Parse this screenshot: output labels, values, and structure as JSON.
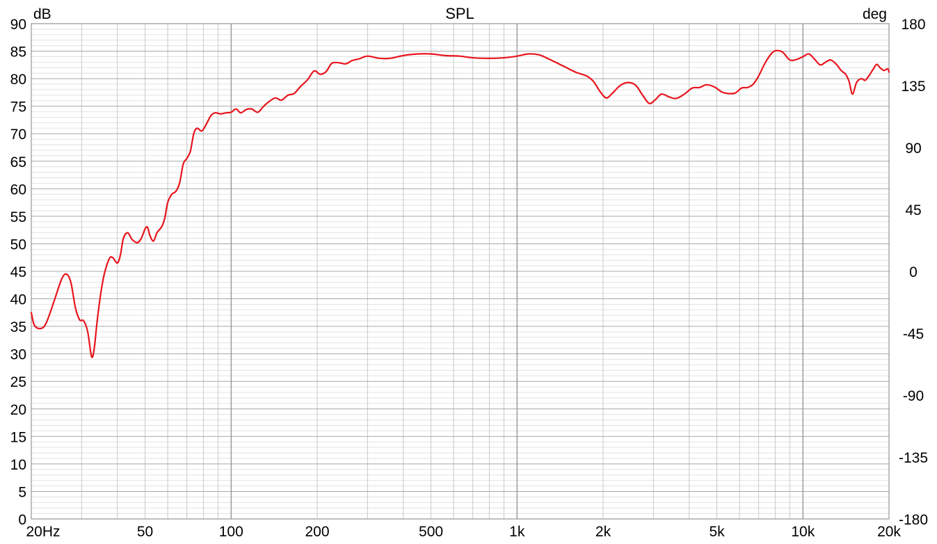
{
  "chart_data": {
    "type": "line",
    "title": "SPL",
    "ylabel_left": "dB",
    "ylabel_right": "deg",
    "x_scale": "log",
    "xlim": [
      20,
      20000
    ],
    "ylim": [
      0,
      90
    ],
    "ylim_right": [
      -180,
      180
    ],
    "grid": true,
    "x_ticks": [
      {
        "value": 20,
        "label": "20Hz"
      },
      {
        "value": 50,
        "label": "50"
      },
      {
        "value": 100,
        "label": "100"
      },
      {
        "value": 200,
        "label": "200"
      },
      {
        "value": 500,
        "label": "500"
      },
      {
        "value": 1000,
        "label": "1k"
      },
      {
        "value": 2000,
        "label": "2k"
      },
      {
        "value": 5000,
        "label": "5k"
      },
      {
        "value": 10000,
        "label": "10k"
      },
      {
        "value": 20000,
        "label": "20k"
      }
    ],
    "y_ticks": [
      "90",
      "85",
      "80",
      "75",
      "70",
      "65",
      "60",
      "55",
      "50",
      "45",
      "40",
      "35",
      "30",
      "25",
      "20",
      "15",
      "10",
      "5",
      "0"
    ],
    "y_ticks_right": [
      "180",
      "135",
      "90",
      "45",
      "0",
      "-45",
      "-90",
      "-135",
      "-180"
    ],
    "line_color": "#e8141c",
    "series": [
      {
        "values": [
          [
            20,
            37.5
          ],
          [
            20.5,
            35.2
          ],
          [
            21.5,
            34.6
          ],
          [
            22.5,
            35.5
          ],
          [
            24,
            39.5
          ],
          [
            25.5,
            43.5
          ],
          [
            26.5,
            44.5
          ],
          [
            27.5,
            43
          ],
          [
            28.5,
            38.5
          ],
          [
            29.5,
            36.2
          ],
          [
            30.5,
            36
          ],
          [
            31.5,
            34
          ],
          [
            32.5,
            29.5
          ],
          [
            33.2,
            31
          ],
          [
            34,
            36
          ],
          [
            35,
            41
          ],
          [
            36,
            44.5
          ],
          [
            37.5,
            47.3
          ],
          [
            38.5,
            47.5
          ],
          [
            40,
            46.5
          ],
          [
            41,
            48
          ],
          [
            42,
            51
          ],
          [
            43.5,
            52
          ],
          [
            45,
            50.8
          ],
          [
            47,
            50.2
          ],
          [
            48.5,
            51
          ],
          [
            50,
            52.7
          ],
          [
            51,
            53
          ],
          [
            52,
            51.5
          ],
          [
            53.5,
            50.5
          ],
          [
            55,
            52
          ],
          [
            57,
            53
          ],
          [
            58.5,
            54.5
          ],
          [
            60,
            57.5
          ],
          [
            62,
            59
          ],
          [
            64,
            59.5
          ],
          [
            66,
            61
          ],
          [
            68,
            64.5
          ],
          [
            70,
            65.5
          ],
          [
            72,
            66.8
          ],
          [
            74,
            70
          ],
          [
            76,
            71
          ],
          [
            79,
            70.5
          ],
          [
            82,
            71.8
          ],
          [
            85,
            73.3
          ],
          [
            88,
            73.8
          ],
          [
            92,
            73.6
          ],
          [
            96,
            73.8
          ],
          [
            100,
            73.9
          ],
          [
            104,
            74.5
          ],
          [
            108,
            73.8
          ],
          [
            113,
            74.4
          ],
          [
            118,
            74.5
          ],
          [
            124,
            73.9
          ],
          [
            130,
            75
          ],
          [
            137,
            76
          ],
          [
            143,
            76.5
          ],
          [
            150,
            76.1
          ],
          [
            158,
            77
          ],
          [
            166,
            77.3
          ],
          [
            175,
            78.6
          ],
          [
            185,
            79.8
          ],
          [
            195,
            81.4
          ],
          [
            205,
            80.8
          ],
          [
            215,
            81.3
          ],
          [
            225,
            82.8
          ],
          [
            238,
            82.9
          ],
          [
            252,
            82.7
          ],
          [
            265,
            83.3
          ],
          [
            280,
            83.6
          ],
          [
            300,
            84.1
          ],
          [
            330,
            83.7
          ],
          [
            360,
            83.7
          ],
          [
            400,
            84.2
          ],
          [
            450,
            84.5
          ],
          [
            500,
            84.5
          ],
          [
            560,
            84.2
          ],
          [
            630,
            84.1
          ],
          [
            700,
            83.8
          ],
          [
            800,
            83.7
          ],
          [
            900,
            83.8
          ],
          [
            1000,
            84.1
          ],
          [
            1100,
            84.5
          ],
          [
            1200,
            84.3
          ],
          [
            1300,
            83.5
          ],
          [
            1450,
            82.3
          ],
          [
            1600,
            81.2
          ],
          [
            1750,
            80.5
          ],
          [
            1850,
            79.5
          ],
          [
            1950,
            77.7
          ],
          [
            2050,
            76.5
          ],
          [
            2150,
            77.3
          ],
          [
            2300,
            78.8
          ],
          [
            2450,
            79.3
          ],
          [
            2600,
            78.8
          ],
          [
            2750,
            77
          ],
          [
            2900,
            75.5
          ],
          [
            3050,
            76.2
          ],
          [
            3200,
            77.2
          ],
          [
            3400,
            76.7
          ],
          [
            3600,
            76.4
          ],
          [
            3850,
            77.2
          ],
          [
            4100,
            78.3
          ],
          [
            4350,
            78.4
          ],
          [
            4600,
            78.9
          ],
          [
            4900,
            78.5
          ],
          [
            5200,
            77.6
          ],
          [
            5500,
            77.3
          ],
          [
            5800,
            77.4
          ],
          [
            6100,
            78.3
          ],
          [
            6400,
            78.4
          ],
          [
            6700,
            79
          ],
          [
            7000,
            80.5
          ],
          [
            7400,
            83
          ],
          [
            7800,
            84.7
          ],
          [
            8100,
            85.1
          ],
          [
            8500,
            84.8
          ],
          [
            9000,
            83.4
          ],
          [
            9500,
            83.5
          ],
          [
            10000,
            84
          ],
          [
            10500,
            84.5
          ],
          [
            11000,
            83.5
          ],
          [
            11500,
            82.5
          ],
          [
            12000,
            83
          ],
          [
            12500,
            83.4
          ],
          [
            13100,
            82.6
          ],
          [
            13600,
            81.5
          ],
          [
            14100,
            80.8
          ],
          [
            14500,
            79.5
          ],
          [
            14900,
            77.2
          ],
          [
            15400,
            79.3
          ],
          [
            16000,
            80
          ],
          [
            16500,
            79.7
          ],
          [
            17000,
            80.5
          ],
          [
            17600,
            81.7
          ],
          [
            18100,
            82.6
          ],
          [
            18600,
            82
          ],
          [
            19200,
            81.5
          ],
          [
            19800,
            81.8
          ],
          [
            20000,
            81.2
          ]
        ]
      }
    ]
  }
}
